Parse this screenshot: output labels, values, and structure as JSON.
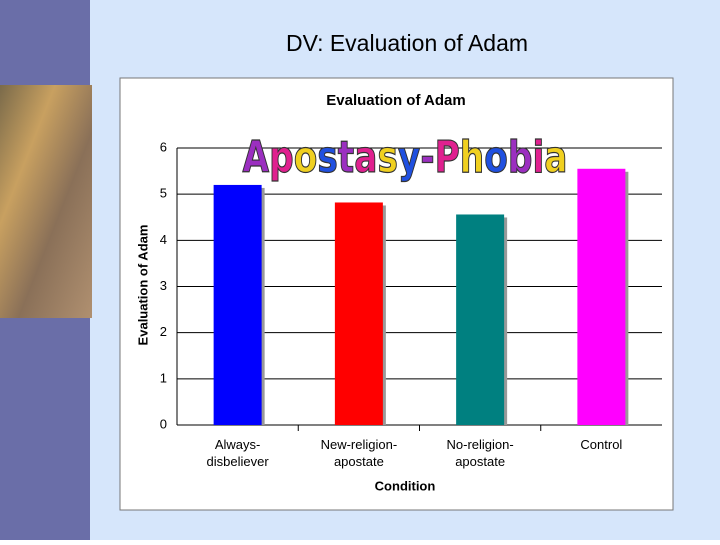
{
  "slide_title": "DV: Evaluation of Adam",
  "chart_data": {
    "type": "bar",
    "title": "Evaluation of Adam",
    "annotation": "Apostasy-Phobia",
    "categories": [
      "Always-\ndisbeliever",
      "New-religion-\napostate",
      "No-religion-\napostate",
      "Control"
    ],
    "values": [
      5.2,
      4.82,
      4.56,
      5.55
    ],
    "colors": [
      "#0000ff",
      "#ff0000",
      "#008080",
      "#ff00ff"
    ],
    "ylim": [
      0,
      6
    ],
    "yticks": [
      0,
      1,
      2,
      3,
      4,
      5,
      6
    ],
    "grid": true,
    "x_label": "Condition",
    "y_label": "Evaluation of Adam"
  }
}
